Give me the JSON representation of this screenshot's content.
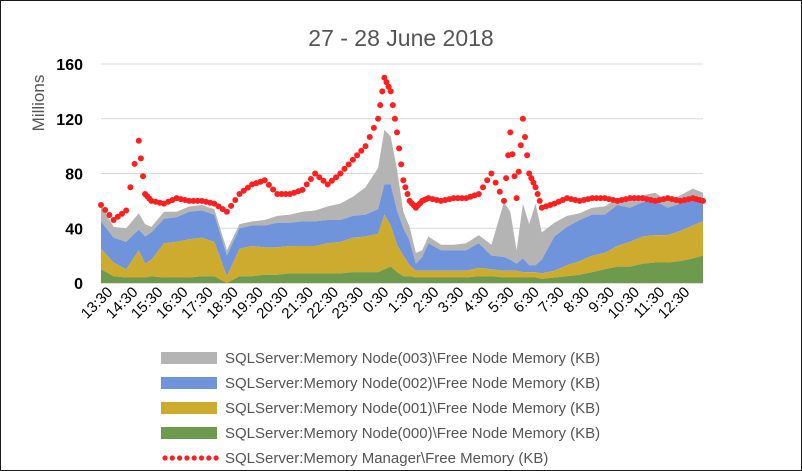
{
  "chart_data": {
    "type": "area",
    "title": "27 - 28 June 2018",
    "ylabel": "Millions",
    "xlabel": "",
    "ylim": [
      0,
      160
    ],
    "yticks": [
      0,
      40,
      80,
      120,
      160
    ],
    "grid": true,
    "legend_position": "bottom",
    "x_tick_labels": [
      "13:30",
      "14:30",
      "15:30",
      "16:30",
      "17:30",
      "18:30",
      "19:30",
      "20:30",
      "21:30",
      "22:30",
      "23:30",
      "0:30",
      "1:30",
      "2:30",
      "3:30",
      "4:30",
      "5:30",
      "6:30",
      "7:30",
      "8:30",
      "9:30",
      "10:30",
      "11:30",
      "12:30"
    ],
    "x": [
      13.0,
      13.5,
      14.0,
      14.5,
      14.75,
      15.0,
      15.5,
      16.0,
      16.5,
      17.0,
      17.5,
      18.0,
      18.5,
      19.0,
      19.5,
      20.0,
      20.5,
      21.0,
      21.5,
      22.0,
      22.5,
      23.0,
      23.5,
      24.0,
      24.25,
      24.5,
      24.75,
      25.0,
      25.25,
      25.5,
      25.75,
      26.0,
      26.5,
      27.0,
      27.5,
      28.0,
      28.5,
      29.0,
      29.25,
      29.5,
      29.75,
      30.0,
      30.25,
      30.5,
      31.0,
      31.5,
      32.0,
      32.5,
      33.0,
      33.5,
      34.0,
      34.5,
      35.0,
      35.5,
      36.0,
      36.5,
      36.9
    ],
    "series": [
      {
        "name": "SQLServer:Memory Node(003)\\Free Node Memory (KB)",
        "color": "#b4b4b4",
        "values": [
          12,
          8,
          10,
          12,
          9,
          4,
          5,
          4,
          4,
          4,
          4,
          4,
          3,
          3,
          4,
          5,
          6,
          7,
          8,
          10,
          12,
          14,
          20,
          30,
          40,
          35,
          30,
          12,
          10,
          8,
          5,
          5,
          4,
          4,
          5,
          6,
          8,
          40,
          35,
          10,
          40,
          30,
          45,
          20,
          10,
          8,
          5,
          5,
          6,
          5,
          6,
          5,
          6,
          5,
          6,
          5,
          6
        ]
      },
      {
        "name": "SQLServer:Memory Node(002)\\Free Node Memory (KB)",
        "color": "#6f94dc",
        "values": [
          20,
          18,
          20,
          15,
          20,
          20,
          18,
          18,
          20,
          20,
          20,
          15,
          15,
          15,
          16,
          18,
          17,
          18,
          18,
          17,
          16,
          16,
          16,
          18,
          22,
          30,
          25,
          20,
          18,
          5,
          10,
          20,
          15,
          15,
          15,
          18,
          10,
          10,
          8,
          5,
          10,
          5,
          5,
          10,
          25,
          28,
          30,
          30,
          28,
          30,
          25,
          25,
          25,
          20,
          20,
          22,
          15
        ]
      },
      {
        "name": "SQLServer:Memory Node(001)\\Free Node Memory (KB)",
        "color": "#ccab2f",
        "values": [
          15,
          10,
          6,
          20,
          10,
          12,
          25,
          26,
          28,
          28,
          25,
          5,
          20,
          22,
          20,
          20,
          20,
          20,
          20,
          22,
          23,
          25,
          26,
          28,
          40,
          30,
          20,
          15,
          8,
          5,
          5,
          5,
          5,
          5,
          5,
          6,
          5,
          5,
          5,
          5,
          4,
          4,
          4,
          4,
          5,
          8,
          10,
          12,
          12,
          15,
          18,
          20,
          20,
          20,
          22,
          24,
          25
        ]
      },
      {
        "name": "SQLServer:Memory Node(000)\\Free Node Memory (KB)",
        "color": "#6e9a4e",
        "values": [
          10,
          5,
          4,
          4,
          4,
          5,
          4,
          4,
          4,
          5,
          5,
          0,
          5,
          5,
          6,
          6,
          7,
          7,
          7,
          7,
          7,
          8,
          8,
          8,
          10,
          12,
          8,
          5,
          5,
          4,
          4,
          4,
          4,
          4,
          4,
          5,
          5,
          4,
          4,
          4,
          4,
          4,
          4,
          3,
          4,
          5,
          6,
          8,
          10,
          12,
          12,
          14,
          15,
          15,
          16,
          18,
          20
        ]
      }
    ],
    "line_series": {
      "name": "SQLServer:Memory Manager\\Free Memory (KB)",
      "color": "#ff1f1f",
      "style": "dotted",
      "values": [
        57,
        46,
        53,
        104,
        65,
        60,
        58,
        62,
        60,
        60,
        58,
        52,
        65,
        72,
        75,
        65,
        65,
        68,
        80,
        72,
        80,
        90,
        100,
        120,
        150,
        140,
        110,
        75,
        60,
        55,
        60,
        62,
        60,
        62,
        62,
        65,
        80,
        60,
        110,
        62,
        120,
        80,
        70,
        55,
        58,
        62,
        60,
        62,
        62,
        60,
        62,
        62,
        60,
        62,
        60,
        62,
        60
      ]
    }
  }
}
